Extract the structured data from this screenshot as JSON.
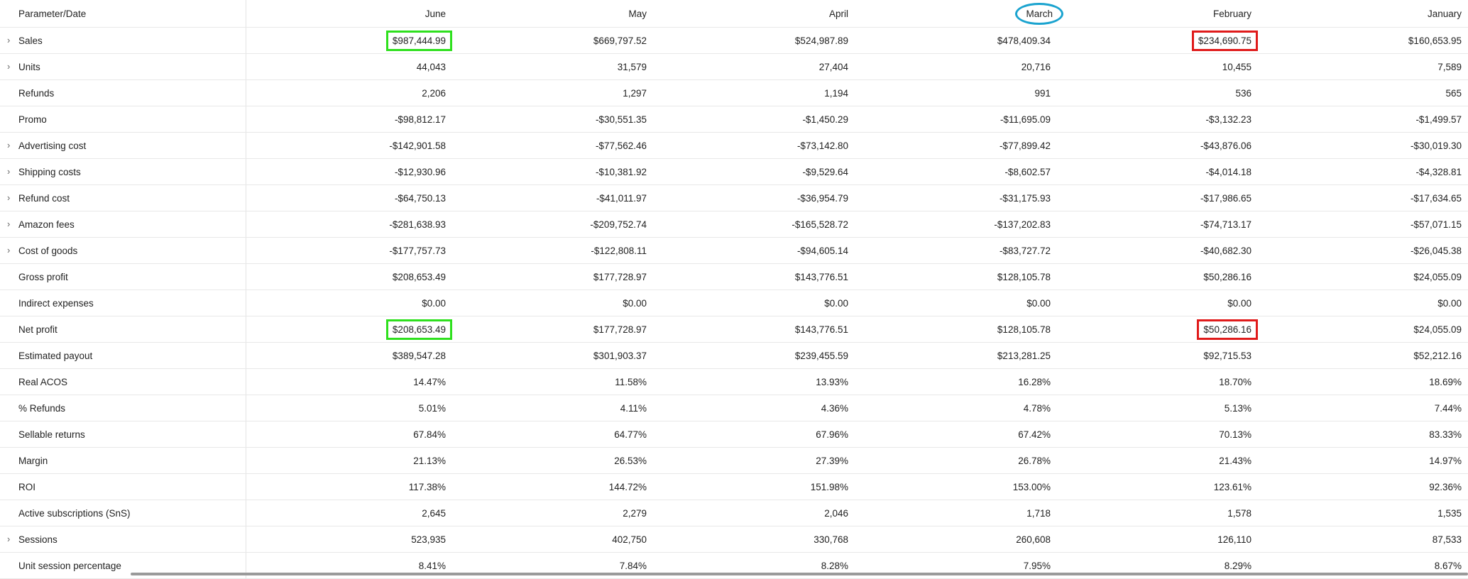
{
  "table": {
    "header": [
      "Parameter/Date",
      "June",
      "May",
      "April",
      "March",
      "February",
      "January"
    ],
    "rows": [
      [
        "Sales",
        "$987,444.99",
        "$669,797.52",
        "$524,987.89",
        "$478,409.34",
        "$234,690.75",
        "$160,653.95"
      ],
      [
        "Units",
        "44,043",
        "31,579",
        "27,404",
        "20,716",
        "10,455",
        "7,589"
      ],
      [
        "Refunds",
        "2,206",
        "1,297",
        "1,194",
        "991",
        "536",
        "565"
      ],
      [
        "Promo",
        "-$98,812.17",
        "-$30,551.35",
        "-$1,450.29",
        "-$11,695.09",
        "-$3,132.23",
        "-$1,499.57"
      ],
      [
        "Advertising cost",
        "-$142,901.58",
        "-$77,562.46",
        "-$73,142.80",
        "-$77,899.42",
        "-$43,876.06",
        "-$30,019.30"
      ],
      [
        "Shipping costs",
        "-$12,930.96",
        "-$10,381.92",
        "-$9,529.64",
        "-$8,602.57",
        "-$4,014.18",
        "-$4,328.81"
      ],
      [
        "Refund cost",
        "-$64,750.13",
        "-$41,011.97",
        "-$36,954.79",
        "-$31,175.93",
        "-$17,986.65",
        "-$17,634.65"
      ],
      [
        "Amazon fees",
        "-$281,638.93",
        "-$209,752.74",
        "-$165,528.72",
        "-$137,202.83",
        "-$74,713.17",
        "-$57,071.15"
      ],
      [
        "Cost of goods",
        "-$177,757.73",
        "-$122,808.11",
        "-$94,605.14",
        "-$83,727.72",
        "-$40,682.30",
        "-$26,045.38"
      ],
      [
        "Gross profit",
        "$208,653.49",
        "$177,728.97",
        "$143,776.51",
        "$128,105.78",
        "$50,286.16",
        "$24,055.09"
      ],
      [
        "Indirect expenses",
        "$0.00",
        "$0.00",
        "$0.00",
        "$0.00",
        "$0.00",
        "$0.00"
      ],
      [
        "Net profit",
        "$208,653.49",
        "$177,728.97",
        "$143,776.51",
        "$128,105.78",
        "$50,286.16",
        "$24,055.09"
      ],
      [
        "Estimated payout",
        "$389,547.28",
        "$301,903.37",
        "$239,455.59",
        "$213,281.25",
        "$92,715.53",
        "$52,212.16"
      ],
      [
        "Real ACOS",
        "14.47%",
        "11.58%",
        "13.93%",
        "16.28%",
        "18.70%",
        "18.69%"
      ],
      [
        "% Refunds",
        "5.01%",
        "4.11%",
        "4.36%",
        "4.78%",
        "5.13%",
        "7.44%"
      ],
      [
        "Sellable returns",
        "67.84%",
        "64.77%",
        "67.96%",
        "67.42%",
        "70.13%",
        "83.33%"
      ],
      [
        "Margin",
        "21.13%",
        "26.53%",
        "27.39%",
        "26.78%",
        "21.43%",
        "14.97%"
      ],
      [
        "ROI",
        "117.38%",
        "144.72%",
        "151.98%",
        "153.00%",
        "123.61%",
        "92.36%"
      ],
      [
        "Active subscriptions (SnS)",
        "2,645",
        "2,279",
        "2,046",
        "1,718",
        "1,578",
        "1,535"
      ],
      [
        "Sessions",
        "523,935",
        "402,750",
        "330,768",
        "260,608",
        "126,110",
        "87,533"
      ],
      [
        "Unit session percentage",
        "8.41%",
        "7.84%",
        "8.28%",
        "7.95%",
        "8.29%",
        "8.67%"
      ]
    ]
  }
}
